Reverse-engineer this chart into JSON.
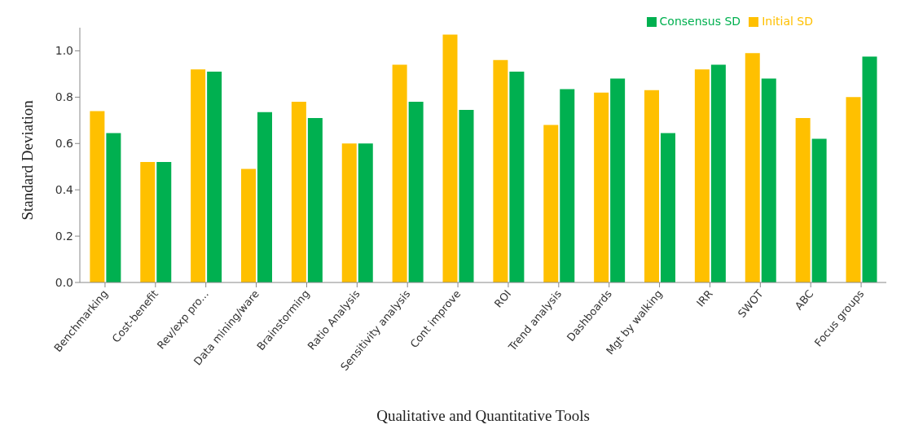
{
  "chart_data": {
    "type": "bar",
    "xlabel": "Qualitative  and  Quantitative Tools",
    "ylabel": "Standard Deviation",
    "categories": [
      "Benchmarking",
      "Cost-benefit",
      "Rev/exp pro...",
      "Data mining/ware",
      "Brainstorming",
      "Ratio Analysis",
      "Sensitivity analysis",
      "Cont improve",
      "ROI",
      "Trend analysis",
      "Dashboards",
      "Mgt by walking",
      "IRR",
      "SWOT",
      "ABC",
      "Focus groups"
    ],
    "series": [
      {
        "name": "Initial SD",
        "color": "#ffc000",
        "values": [
          0.74,
          0.52,
          0.92,
          0.49,
          0.78,
          0.6,
          0.94,
          1.07,
          0.96,
          0.68,
          0.82,
          0.83,
          0.92,
          0.99,
          0.71,
          0.8
        ]
      },
      {
        "name": "Consensus SD",
        "color": "#00b050",
        "values": [
          0.645,
          0.52,
          0.91,
          0.735,
          0.71,
          0.6,
          0.78,
          0.745,
          0.91,
          0.835,
          0.88,
          0.645,
          0.94,
          0.88,
          0.62,
          0.975
        ]
      }
    ],
    "ylim": [
      0,
      1.1
    ],
    "yticks": [
      {
        "value": 0,
        "label": "0.0"
      },
      {
        "value": 0.2,
        "label": "0.2"
      },
      {
        "value": 0.4,
        "label": "0.4"
      },
      {
        "value": 0.6,
        "label": "0.6"
      },
      {
        "value": 0.8,
        "label": "0.8"
      },
      {
        "value": 1,
        "label": "1.0"
      }
    ],
    "grid": false,
    "legend": "top right"
  }
}
